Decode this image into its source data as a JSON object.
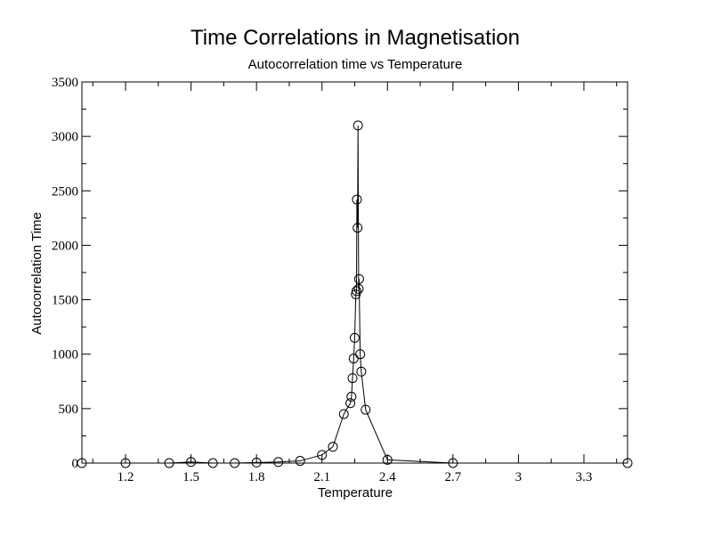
{
  "chart_data": {
    "type": "scatter",
    "title": "Time Correlations in Magnetisation",
    "subtitle": "Autocorrelation time vs Temperature",
    "xlabel": "Temperature",
    "ylabel": "Autocorrelation Time",
    "xlim": [
      1.0,
      3.5
    ],
    "ylim": [
      0,
      3500
    ],
    "xticks": [
      1.2,
      1.5,
      1.8,
      2.1,
      2.4,
      2.7,
      3,
      3.3
    ],
    "yticks": [
      0,
      500,
      1000,
      1500,
      2000,
      2500,
      3000,
      3500
    ],
    "marker": "open-circle",
    "line": true,
    "grid": false,
    "colors": {
      "line": "#000000",
      "marker": "#000000",
      "background": "#ffffff"
    },
    "series": [
      {
        "points": [
          [
            1.0,
            0
          ],
          [
            1.2,
            0
          ],
          [
            1.4,
            0
          ],
          [
            1.5,
            10
          ],
          [
            1.6,
            0
          ],
          [
            1.7,
            0
          ],
          [
            1.8,
            5
          ],
          [
            1.9,
            10
          ],
          [
            2.0,
            20
          ],
          [
            2.1,
            75
          ],
          [
            2.15,
            150
          ],
          [
            2.2,
            450
          ],
          [
            2.23,
            550
          ],
          [
            2.235,
            610
          ],
          [
            2.24,
            780
          ],
          [
            2.245,
            960
          ],
          [
            2.25,
            1150
          ],
          [
            2.255,
            1550
          ],
          [
            2.258,
            1580
          ],
          [
            2.26,
            2420
          ],
          [
            2.263,
            2160
          ],
          [
            2.265,
            3100
          ],
          [
            2.268,
            1600
          ],
          [
            2.27,
            1690
          ],
          [
            2.275,
            1000
          ],
          [
            2.28,
            840
          ],
          [
            2.3,
            490
          ],
          [
            2.4,
            30
          ],
          [
            2.7,
            0
          ],
          [
            3.5,
            0
          ]
        ]
      }
    ]
  }
}
